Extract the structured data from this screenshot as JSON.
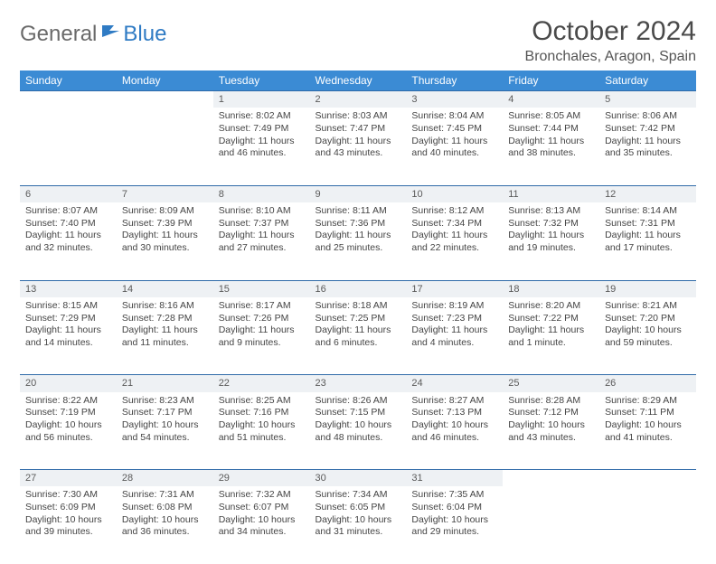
{
  "brand": {
    "word1": "General",
    "word2": "Blue",
    "logo_color": "#2f7bc4",
    "text_color": "#6a6a6a"
  },
  "title": "October 2024",
  "location": "Bronchales, Aragon, Spain",
  "colors": {
    "header_bg": "#3b8bd4",
    "daynum_bg": "#eef1f4",
    "rule": "#2f6aa8"
  },
  "day_headers": [
    "Sunday",
    "Monday",
    "Tuesday",
    "Wednesday",
    "Thursday",
    "Friday",
    "Saturday"
  ],
  "weeks": [
    {
      "nums": [
        "",
        "",
        "1",
        "2",
        "3",
        "4",
        "5"
      ],
      "cells": [
        null,
        null,
        {
          "sunrise": "Sunrise: 8:02 AM",
          "sunset": "Sunset: 7:49 PM",
          "daylight": "Daylight: 11 hours and 46 minutes."
        },
        {
          "sunrise": "Sunrise: 8:03 AM",
          "sunset": "Sunset: 7:47 PM",
          "daylight": "Daylight: 11 hours and 43 minutes."
        },
        {
          "sunrise": "Sunrise: 8:04 AM",
          "sunset": "Sunset: 7:45 PM",
          "daylight": "Daylight: 11 hours and 40 minutes."
        },
        {
          "sunrise": "Sunrise: 8:05 AM",
          "sunset": "Sunset: 7:44 PM",
          "daylight": "Daylight: 11 hours and 38 minutes."
        },
        {
          "sunrise": "Sunrise: 8:06 AM",
          "sunset": "Sunset: 7:42 PM",
          "daylight": "Daylight: 11 hours and 35 minutes."
        }
      ]
    },
    {
      "nums": [
        "6",
        "7",
        "8",
        "9",
        "10",
        "11",
        "12"
      ],
      "cells": [
        {
          "sunrise": "Sunrise: 8:07 AM",
          "sunset": "Sunset: 7:40 PM",
          "daylight": "Daylight: 11 hours and 32 minutes."
        },
        {
          "sunrise": "Sunrise: 8:09 AM",
          "sunset": "Sunset: 7:39 PM",
          "daylight": "Daylight: 11 hours and 30 minutes."
        },
        {
          "sunrise": "Sunrise: 8:10 AM",
          "sunset": "Sunset: 7:37 PM",
          "daylight": "Daylight: 11 hours and 27 minutes."
        },
        {
          "sunrise": "Sunrise: 8:11 AM",
          "sunset": "Sunset: 7:36 PM",
          "daylight": "Daylight: 11 hours and 25 minutes."
        },
        {
          "sunrise": "Sunrise: 8:12 AM",
          "sunset": "Sunset: 7:34 PM",
          "daylight": "Daylight: 11 hours and 22 minutes."
        },
        {
          "sunrise": "Sunrise: 8:13 AM",
          "sunset": "Sunset: 7:32 PM",
          "daylight": "Daylight: 11 hours and 19 minutes."
        },
        {
          "sunrise": "Sunrise: 8:14 AM",
          "sunset": "Sunset: 7:31 PM",
          "daylight": "Daylight: 11 hours and 17 minutes."
        }
      ]
    },
    {
      "nums": [
        "13",
        "14",
        "15",
        "16",
        "17",
        "18",
        "19"
      ],
      "cells": [
        {
          "sunrise": "Sunrise: 8:15 AM",
          "sunset": "Sunset: 7:29 PM",
          "daylight": "Daylight: 11 hours and 14 minutes."
        },
        {
          "sunrise": "Sunrise: 8:16 AM",
          "sunset": "Sunset: 7:28 PM",
          "daylight": "Daylight: 11 hours and 11 minutes."
        },
        {
          "sunrise": "Sunrise: 8:17 AM",
          "sunset": "Sunset: 7:26 PM",
          "daylight": "Daylight: 11 hours and 9 minutes."
        },
        {
          "sunrise": "Sunrise: 8:18 AM",
          "sunset": "Sunset: 7:25 PM",
          "daylight": "Daylight: 11 hours and 6 minutes."
        },
        {
          "sunrise": "Sunrise: 8:19 AM",
          "sunset": "Sunset: 7:23 PM",
          "daylight": "Daylight: 11 hours and 4 minutes."
        },
        {
          "sunrise": "Sunrise: 8:20 AM",
          "sunset": "Sunset: 7:22 PM",
          "daylight": "Daylight: 11 hours and 1 minute."
        },
        {
          "sunrise": "Sunrise: 8:21 AM",
          "sunset": "Sunset: 7:20 PM",
          "daylight": "Daylight: 10 hours and 59 minutes."
        }
      ]
    },
    {
      "nums": [
        "20",
        "21",
        "22",
        "23",
        "24",
        "25",
        "26"
      ],
      "cells": [
        {
          "sunrise": "Sunrise: 8:22 AM",
          "sunset": "Sunset: 7:19 PM",
          "daylight": "Daylight: 10 hours and 56 minutes."
        },
        {
          "sunrise": "Sunrise: 8:23 AM",
          "sunset": "Sunset: 7:17 PM",
          "daylight": "Daylight: 10 hours and 54 minutes."
        },
        {
          "sunrise": "Sunrise: 8:25 AM",
          "sunset": "Sunset: 7:16 PM",
          "daylight": "Daylight: 10 hours and 51 minutes."
        },
        {
          "sunrise": "Sunrise: 8:26 AM",
          "sunset": "Sunset: 7:15 PM",
          "daylight": "Daylight: 10 hours and 48 minutes."
        },
        {
          "sunrise": "Sunrise: 8:27 AM",
          "sunset": "Sunset: 7:13 PM",
          "daylight": "Daylight: 10 hours and 46 minutes."
        },
        {
          "sunrise": "Sunrise: 8:28 AM",
          "sunset": "Sunset: 7:12 PM",
          "daylight": "Daylight: 10 hours and 43 minutes."
        },
        {
          "sunrise": "Sunrise: 8:29 AM",
          "sunset": "Sunset: 7:11 PM",
          "daylight": "Daylight: 10 hours and 41 minutes."
        }
      ]
    },
    {
      "nums": [
        "27",
        "28",
        "29",
        "30",
        "31",
        "",
        ""
      ],
      "cells": [
        {
          "sunrise": "Sunrise: 7:30 AM",
          "sunset": "Sunset: 6:09 PM",
          "daylight": "Daylight: 10 hours and 39 minutes."
        },
        {
          "sunrise": "Sunrise: 7:31 AM",
          "sunset": "Sunset: 6:08 PM",
          "daylight": "Daylight: 10 hours and 36 minutes."
        },
        {
          "sunrise": "Sunrise: 7:32 AM",
          "sunset": "Sunset: 6:07 PM",
          "daylight": "Daylight: 10 hours and 34 minutes."
        },
        {
          "sunrise": "Sunrise: 7:34 AM",
          "sunset": "Sunset: 6:05 PM",
          "daylight": "Daylight: 10 hours and 31 minutes."
        },
        {
          "sunrise": "Sunrise: 7:35 AM",
          "sunset": "Sunset: 6:04 PM",
          "daylight": "Daylight: 10 hours and 29 minutes."
        },
        null,
        null
      ]
    }
  ]
}
